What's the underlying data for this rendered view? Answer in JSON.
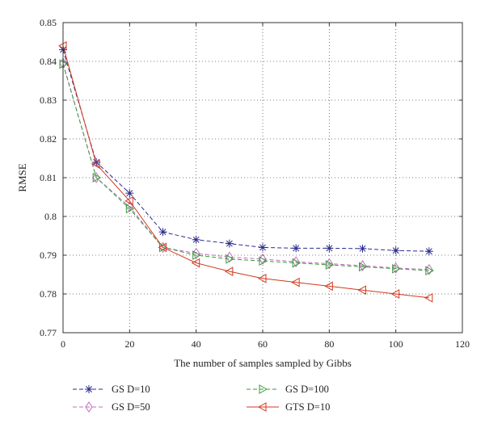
{
  "chart_data": {
    "type": "line",
    "title": "",
    "xlabel": "The number of samples sampled by Gibbs",
    "ylabel": "RMSE",
    "xlim": [
      0,
      120
    ],
    "ylim": [
      0.77,
      0.85
    ],
    "x_ticks": [
      0,
      20,
      40,
      60,
      80,
      100,
      120
    ],
    "x_tick_labels": [
      "0",
      "20",
      "40",
      "60",
      "80",
      "100",
      "120"
    ],
    "y_ticks": [
      0.77,
      0.78,
      0.79,
      0.8,
      0.81,
      0.82,
      0.83,
      0.84,
      0.85
    ],
    "y_tick_labels": [
      "0.77",
      "0.78",
      "0.79",
      "0.8",
      "0.81",
      "0.82",
      "0.83",
      "0.84",
      "0.85"
    ],
    "grid": true,
    "legend_position": "bottom",
    "x": [
      0,
      10,
      20,
      30,
      40,
      50,
      60,
      70,
      80,
      90,
      100,
      110
    ],
    "series": [
      {
        "name": "GS D=10",
        "color": "#2b2b8f",
        "marker": "asterisk",
        "dash": "dashed",
        "values": [
          0.843,
          0.814,
          0.806,
          0.796,
          0.794,
          0.793,
          0.792,
          0.7918,
          0.7918,
          0.7917,
          0.7912,
          0.791
        ]
      },
      {
        "name": "GS D=50",
        "color": "#c070c0",
        "marker": "diamond",
        "dash": "dashed",
        "values": [
          0.8395,
          0.81,
          0.8025,
          0.792,
          0.7905,
          0.7895,
          0.789,
          0.7883,
          0.7878,
          0.7873,
          0.7867,
          0.7863
        ]
      },
      {
        "name": "GS D=100",
        "color": "#3a9a3a",
        "marker": "triangle-right",
        "dash": "dashed",
        "values": [
          0.8393,
          0.81,
          0.802,
          0.792,
          0.79,
          0.789,
          0.7885,
          0.788,
          0.7875,
          0.787,
          0.7865,
          0.786
        ]
      },
      {
        "name": "GTS D=10",
        "color": "#d03a20",
        "marker": "triangle-left",
        "dash": "solid",
        "values": [
          0.844,
          0.8135,
          0.804,
          0.792,
          0.788,
          0.7858,
          0.784,
          0.783,
          0.782,
          0.781,
          0.78,
          0.779
        ]
      }
    ]
  }
}
